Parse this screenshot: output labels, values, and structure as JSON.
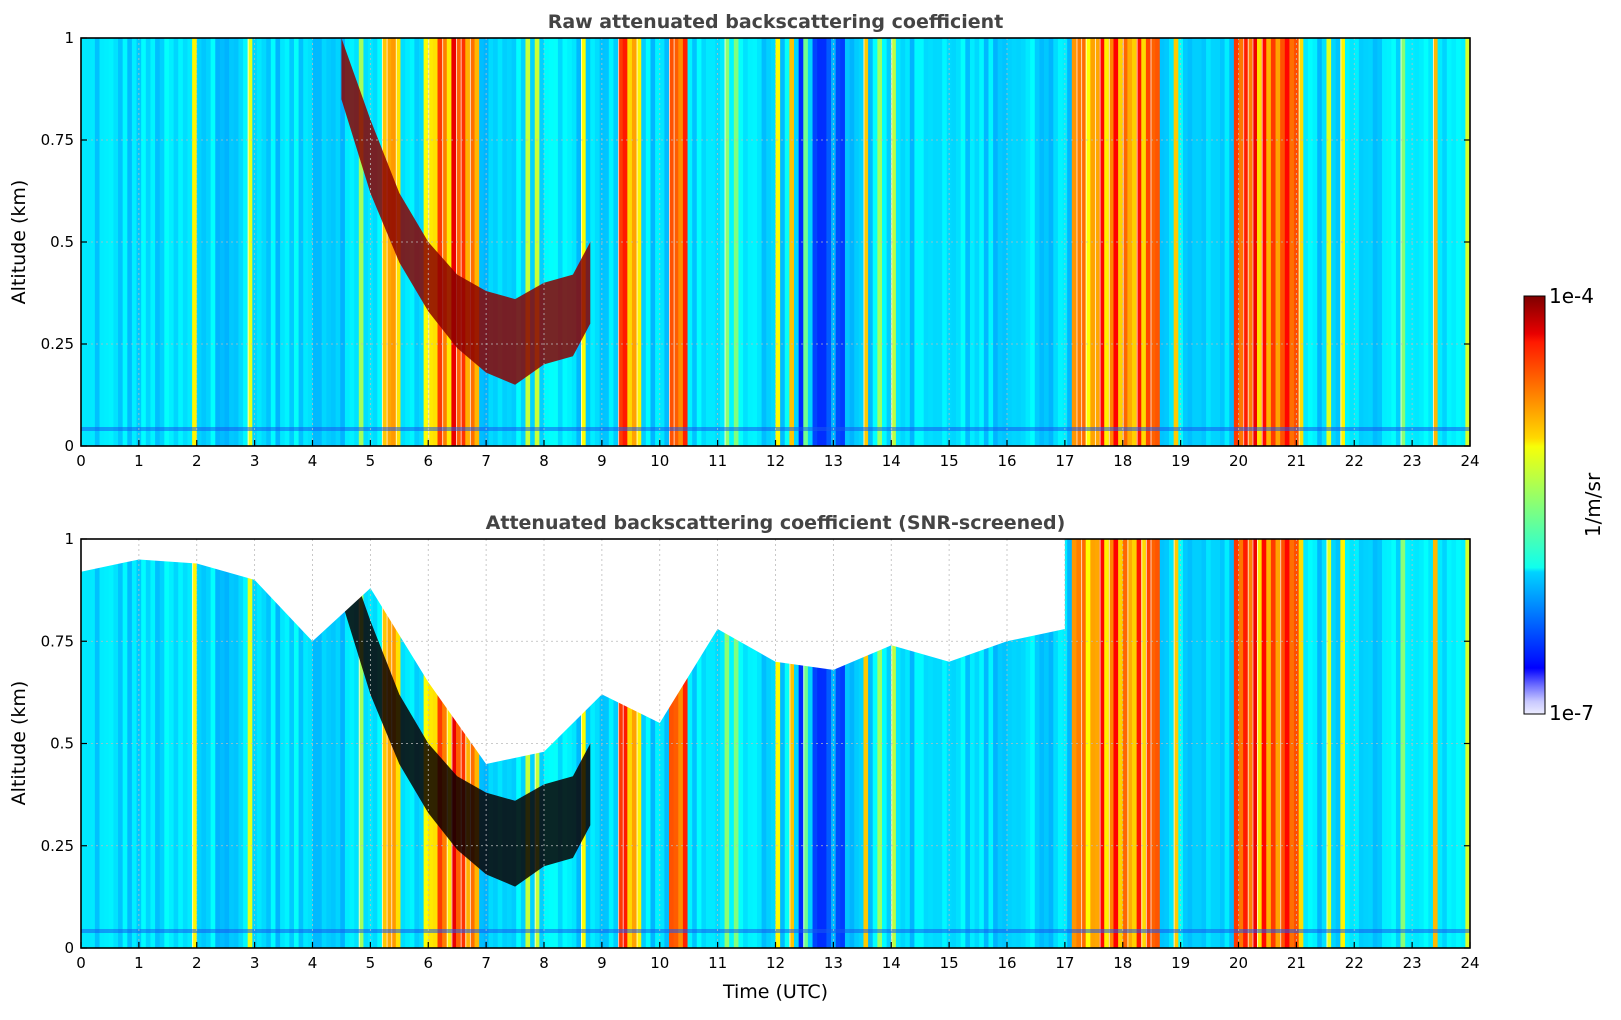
{
  "chart_data": [
    {
      "type": "heatmap",
      "title": "Raw attenuated backscattering coefficient",
      "xlabel": "",
      "ylabel": "Altitude (km)",
      "xlim": [
        0,
        24
      ],
      "ylim": [
        0,
        1
      ],
      "xticks": [
        "0",
        "1",
        "2",
        "3",
        "4",
        "5",
        "6",
        "7",
        "8",
        "9",
        "10",
        "11",
        "12",
        "13",
        "14",
        "15",
        "16",
        "17",
        "18",
        "19",
        "20",
        "21",
        "22",
        "23",
        "24"
      ],
      "yticks": [
        "0",
        "0.25",
        "0.5",
        "0.75",
        "1"
      ],
      "grid": true,
      "colorscale": "jet",
      "features": {
        "cloud_layer": {
          "x": [
            4.5,
            5.0,
            5.5,
            6.0,
            6.5,
            7.0,
            7.5,
            8.0,
            8.5,
            8.8
          ],
          "top_km": [
            1.0,
            0.8,
            0.62,
            0.5,
            0.42,
            0.38,
            0.36,
            0.4,
            0.42,
            0.5
          ],
          "base_km": [
            0.85,
            0.62,
            0.45,
            0.33,
            0.24,
            0.18,
            0.15,
            0.2,
            0.22,
            0.3
          ]
        },
        "high_signal_bands": [
          [
            5.2,
            5.5
          ],
          [
            5.9,
            6.9
          ],
          [
            9.3,
            9.7
          ],
          [
            10.2,
            10.5
          ],
          [
            17.1,
            18.6
          ],
          [
            19.9,
            21.1
          ]
        ]
      }
    },
    {
      "type": "heatmap",
      "title": "Attenuated backscattering coefficient (SNR-screened)",
      "xlabel": "Time (UTC)",
      "ylabel": "Altitude (km)",
      "xlim": [
        0,
        24
      ],
      "ylim": [
        0,
        1
      ],
      "xticks": [
        "0",
        "1",
        "2",
        "3",
        "4",
        "5",
        "6",
        "7",
        "8",
        "9",
        "10",
        "11",
        "12",
        "13",
        "14",
        "15",
        "16",
        "17",
        "18",
        "19",
        "20",
        "21",
        "22",
        "23",
        "24"
      ],
      "yticks": [
        "0",
        "0.25",
        "0.5",
        "0.75",
        "1"
      ],
      "grid": true,
      "colorscale": "jet",
      "screened_upper_limit_km": {
        "x": [
          0,
          1,
          2,
          3,
          4,
          5,
          6,
          7,
          8,
          9,
          10,
          11,
          12,
          13,
          14,
          15,
          16,
          17
        ],
        "y": [
          0.92,
          0.95,
          0.94,
          0.9,
          0.75,
          0.88,
          0.65,
          0.45,
          0.48,
          0.62,
          0.55,
          0.78,
          0.7,
          0.68,
          0.74,
          0.7,
          0.75,
          0.78
        ]
      }
    }
  ],
  "colorbar": {
    "max_label": "1e-4",
    "min_label": "1e-7",
    "unit_label": "1/m/sr"
  }
}
